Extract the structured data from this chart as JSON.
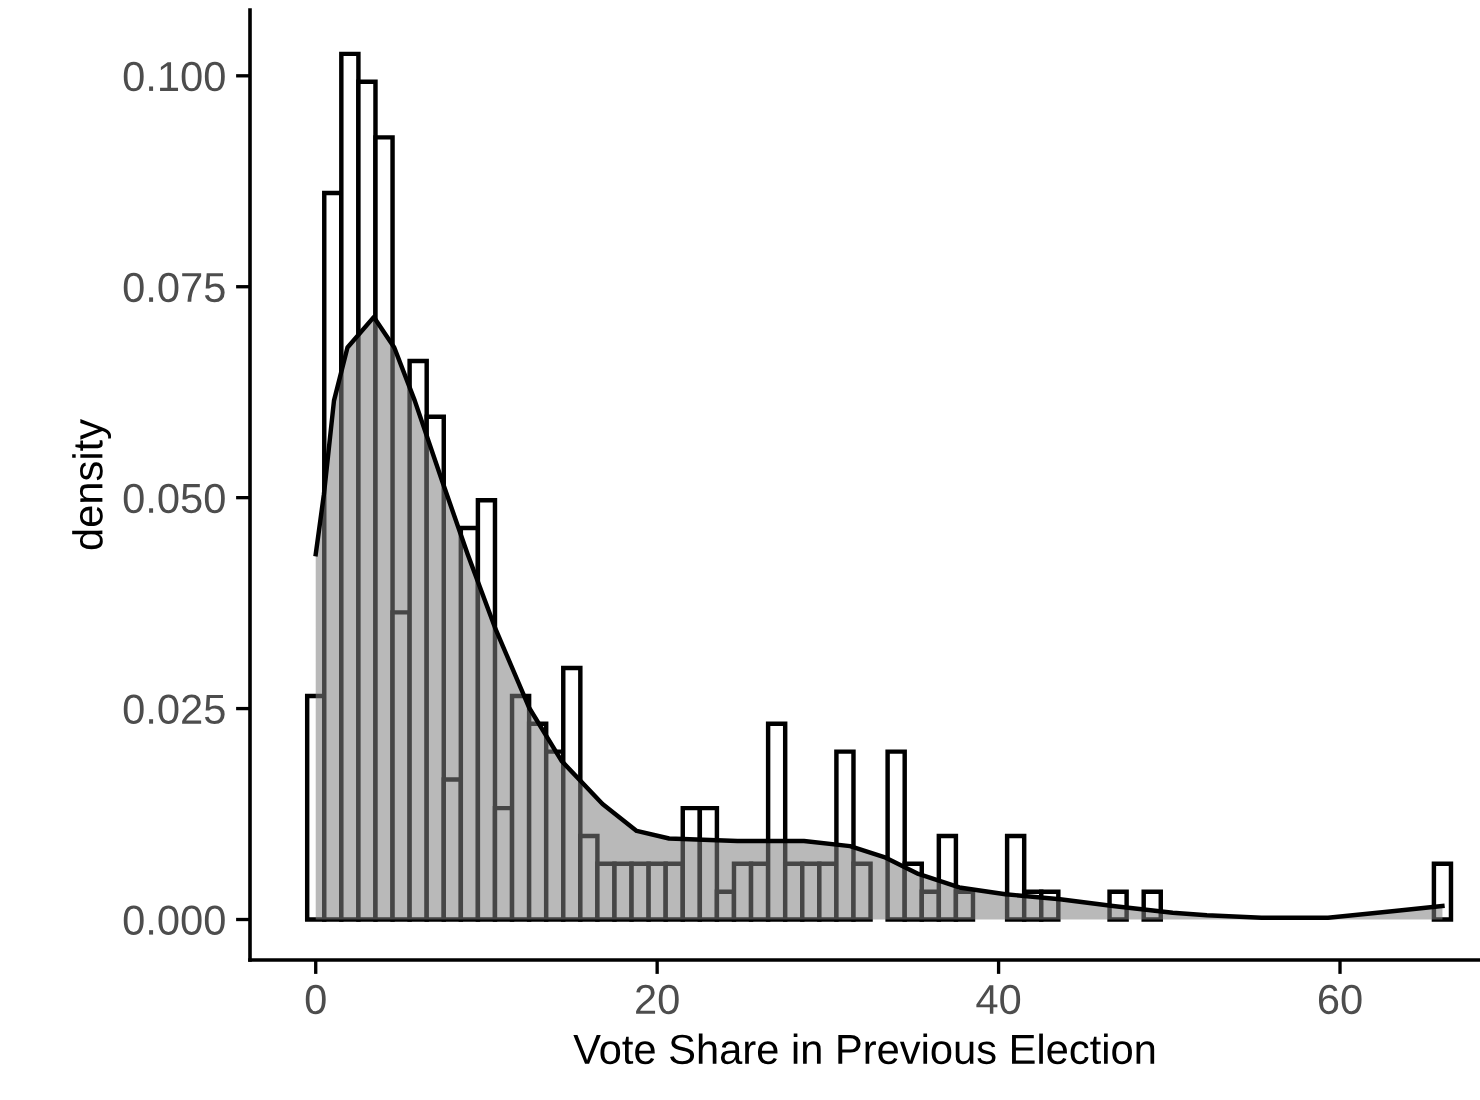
{
  "chart_data": {
    "type": "histogram",
    "xlabel": "Vote Share in Previous Election",
    "ylabel": "density",
    "xlim": [
      -3.85,
      68.2
    ],
    "ylim": [
      -0.0048,
      0.1078
    ],
    "xticks": [
      0,
      20,
      40,
      60
    ],
    "yticks": [
      {
        "value": 0,
        "label": "0.000"
      },
      {
        "value": 0.025,
        "label": "0.025"
      },
      {
        "value": 0.05,
        "label": "0.050"
      },
      {
        "value": 0.075,
        "label": "0.075"
      },
      {
        "value": 0.1,
        "label": "0.100"
      }
    ],
    "grid": false,
    "series": [
      {
        "color": "#ffffff",
        "bins": [
          -0.5,
          0.5,
          1.5,
          2.5,
          3.5,
          4.5,
          5.5,
          6.5,
          7.5,
          8.5,
          9.5,
          10.5,
          11.5,
          12.5,
          13.5,
          14.5,
          15.5,
          16.5,
          17.5,
          18.5,
          19.5,
          20.5,
          21.5,
          22.5,
          23.5,
          24.5,
          25.5,
          26.5,
          27.5,
          28.5,
          29.5,
          30.5,
          31.5,
          32.5,
          33.5,
          34.5,
          35.5,
          36.5,
          37.5,
          38.5,
          39.5,
          40.5,
          41.5,
          42.5,
          43.5,
          44.5,
          45.5,
          46.5,
          47.5,
          48.5,
          49.5,
          50.5,
          51.5,
          52.5,
          53.5,
          54.5,
          55.5,
          56.5,
          57.5,
          58.5,
          59.5,
          60.5,
          61.5,
          62.5,
          63.5,
          64.5,
          65.5,
          66.5
        ],
        "values": [
          0.0265,
          0.0861,
          0.1026,
          0.0993,
          0.0927,
          0.0364,
          0.0662,
          0.0596,
          0.0166,
          0.0464,
          0.0497,
          0.0132,
          0.0265,
          0.0232,
          0.0199,
          0.0298,
          0.0099,
          0.0066,
          0.0066,
          0.0066,
          0.0066,
          0.0066,
          0.0132,
          0.0132,
          0.0033,
          0.0066,
          0.0066,
          0.0232,
          0.0066,
          0.0066,
          0.0066,
          0.0199,
          0.0066,
          0,
          0.0199,
          0.0066,
          0.0033,
          0.0099,
          0.0033,
          0,
          0,
          0.0099,
          0.0033,
          0.0033,
          0,
          0,
          0,
          0.0033,
          0,
          0.0033,
          0,
          0,
          0,
          0,
          0,
          0,
          0,
          0,
          0,
          0,
          0,
          0,
          0,
          0,
          0,
          0,
          0.0066
        ]
      },
      {
        "type": "area",
        "color": "#b5b5b5",
        "x": [
          0,
          0.48,
          1.07,
          1.86,
          3.4,
          4.6,
          5.8,
          7.4,
          8.9,
          10.5,
          12.5,
          14.4,
          16.8,
          18.8,
          20.7,
          24.7,
          28.6,
          31.3,
          33.3,
          35.3,
          37.7,
          40.4,
          43.6,
          46.7,
          50.2,
          52.2,
          55.4,
          59.3,
          63.2,
          66
        ],
        "values": [
          0.0433,
          0.0504,
          0.0615,
          0.0678,
          0.0714,
          0.0678,
          0.0615,
          0.052,
          0.0433,
          0.0346,
          0.0251,
          0.0188,
          0.0137,
          0.0105,
          0.0096,
          0.0093,
          0.0093,
          0.0087,
          0.0074,
          0.0054,
          0.0038,
          0.003,
          0.0024,
          0.0016,
          0.0008,
          0.0005,
          0.0002,
          0.0002,
          0.001,
          0.0016
        ]
      }
    ]
  }
}
